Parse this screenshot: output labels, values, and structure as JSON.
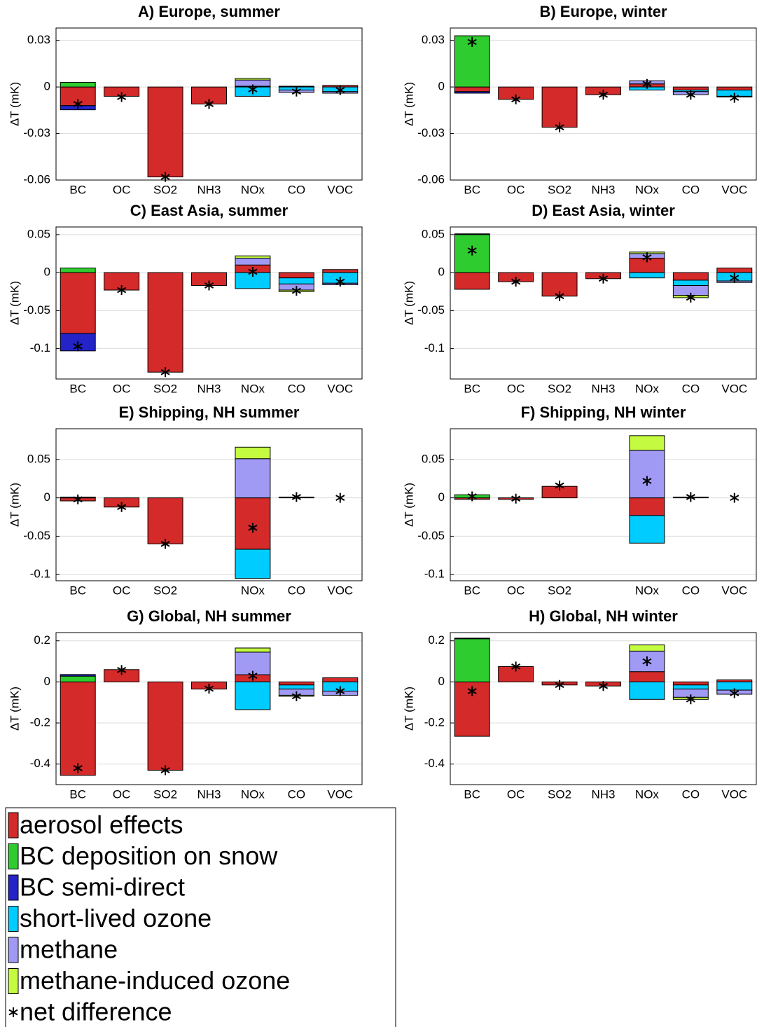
{
  "legend": {
    "entries": [
      {
        "name": "aerosol effects",
        "color": "#d42a2a"
      },
      {
        "name": "BC deposition on snow",
        "color": "#2fcc2f"
      },
      {
        "name": "BC semi-direct",
        "color": "#2323c8"
      },
      {
        "name": "short-lived ozone",
        "color": "#00ccff"
      },
      {
        "name": "methane",
        "color": "#a09af5"
      },
      {
        "name": "methane-induced ozone",
        "color": "#c4fb40"
      }
    ],
    "net_label": "net difference"
  },
  "chart_data": [
    {
      "type": "bar",
      "title": "A) Europe, summer",
      "ylabel": "ΔT (mK)",
      "grid": true,
      "categories": [
        "BC",
        "OC",
        "SO2",
        "NH3",
        "NOx",
        "CO",
        "VOC"
      ],
      "ylim": [
        -0.06,
        0.038
      ],
      "yticks": [
        -0.06,
        -0.03,
        0,
        0.03
      ],
      "series": [
        {
          "values": [
            -0.012,
            -0.006,
            -0.058,
            -0.011,
            0.0005,
            0.0005,
            0.001
          ]
        },
        {
          "values": [
            0.003,
            0,
            0,
            0,
            0,
            0,
            0
          ]
        },
        {
          "values": [
            -0.0027,
            0,
            0,
            0,
            0,
            0,
            0
          ]
        },
        {
          "values": [
            0,
            0,
            0,
            0,
            -0.006,
            -0.002,
            -0.003
          ]
        },
        {
          "values": [
            0,
            0,
            0,
            0,
            0.004,
            -0.0015,
            -0.001
          ]
        },
        {
          "values": [
            0,
            0,
            0,
            0,
            0.001,
            0,
            0
          ]
        }
      ],
      "net": [
        -0.011,
        -0.0065,
        -0.058,
        -0.011,
        -0.0015,
        -0.003,
        -0.002
      ]
    },
    {
      "type": "bar",
      "title": "B) Europe, winter",
      "ylabel": "ΔT (mK)",
      "grid": true,
      "categories": [
        "BC",
        "OC",
        "SO2",
        "NH3",
        "NOx",
        "CO",
        "VOC"
      ],
      "ylim": [
        -0.06,
        0.038
      ],
      "yticks": [
        -0.06,
        -0.03,
        0,
        0.03
      ],
      "series": [
        {
          "values": [
            -0.003,
            -0.008,
            -0.026,
            -0.005,
            0.002,
            -0.002,
            -0.002
          ]
        },
        {
          "values": [
            0.033,
            0,
            0,
            0,
            0,
            0,
            0
          ]
        },
        {
          "values": [
            -0.001,
            0,
            0,
            0,
            0,
            0,
            0
          ]
        },
        {
          "values": [
            0,
            0,
            0,
            0,
            -0.002,
            -0.001,
            -0.004
          ]
        },
        {
          "values": [
            0,
            0,
            0,
            0,
            0.002,
            -0.002,
            -0.0005
          ]
        },
        {
          "values": [
            0,
            0,
            0,
            0,
            0,
            0,
            0
          ]
        }
      ],
      "net": [
        0.029,
        -0.008,
        -0.026,
        -0.005,
        0.002,
        -0.005,
        -0.007
      ]
    },
    {
      "type": "bar",
      "title": "C) East Asia, summer",
      "ylabel": "ΔT (mK)",
      "grid": true,
      "categories": [
        "BC",
        "OC",
        "SO2",
        "NH3",
        "NOx",
        "CO",
        "VOC"
      ],
      "ylim": [
        -0.14,
        0.06
      ],
      "yticks": [
        -0.1,
        -0.05,
        0,
        0.05
      ],
      "series": [
        {
          "values": [
            -0.08,
            -0.023,
            -0.131,
            -0.017,
            0.01,
            -0.007,
            0.004
          ]
        },
        {
          "values": [
            0.006,
            0,
            0,
            0,
            0,
            0,
            0
          ]
        },
        {
          "values": [
            -0.023,
            0,
            0,
            0,
            0,
            0,
            0
          ]
        },
        {
          "values": [
            0,
            0,
            0,
            0,
            -0.021,
            -0.008,
            -0.014
          ]
        },
        {
          "values": [
            0,
            0,
            0,
            0,
            0.009,
            -0.008,
            -0.002
          ]
        },
        {
          "values": [
            0,
            0,
            0,
            0,
            0.003,
            -0.002,
            0
          ]
        }
      ],
      "net": [
        -0.097,
        -0.023,
        -0.131,
        -0.017,
        0.001,
        -0.024,
        -0.012
      ]
    },
    {
      "type": "bar",
      "title": "D) East Asia, winter",
      "ylabel": "ΔT (mK)",
      "grid": true,
      "categories": [
        "BC",
        "OC",
        "SO2",
        "NH3",
        "NOx",
        "CO",
        "VOC"
      ],
      "ylim": [
        -0.14,
        0.06
      ],
      "yticks": [
        -0.1,
        -0.05,
        0,
        0.05
      ],
      "series": [
        {
          "values": [
            -0.022,
            -0.012,
            -0.031,
            -0.008,
            0.019,
            -0.01,
            0.006
          ]
        },
        {
          "values": [
            0.05,
            0,
            0,
            0,
            0,
            0,
            0
          ]
        },
        {
          "values": [
            0.001,
            0,
            0,
            0,
            0,
            0,
            0
          ]
        },
        {
          "values": [
            0,
            0,
            0,
            0,
            -0.007,
            -0.007,
            -0.011
          ]
        },
        {
          "values": [
            0,
            0,
            0,
            0,
            0.006,
            -0.013,
            -0.002
          ]
        },
        {
          "values": [
            0,
            0,
            0,
            0,
            0.002,
            -0.003,
            0
          ]
        }
      ],
      "net": [
        0.029,
        -0.012,
        -0.031,
        -0.008,
        0.02,
        -0.033,
        -0.007
      ]
    },
    {
      "type": "bar",
      "title": "E) Shipping, NH summer",
      "ylabel": "ΔT (mK)",
      "grid": true,
      "categories": [
        "BC",
        "OC",
        "SO2",
        null,
        "NOx",
        "CO",
        "VOC"
      ],
      "ylim": [
        -0.108,
        0.09
      ],
      "yticks": [
        -0.1,
        -0.05,
        0,
        0.05
      ],
      "series": [
        {
          "values": [
            -0.004,
            -0.012,
            -0.06,
            0,
            -0.067,
            0,
            0
          ]
        },
        {
          "values": [
            0.001,
            0,
            0,
            0,
            0,
            0,
            0
          ]
        },
        {
          "values": [
            0,
            0,
            0,
            0,
            0,
            0,
            0
          ]
        },
        {
          "values": [
            0,
            0,
            0,
            0,
            -0.038,
            0,
            0
          ]
        },
        {
          "values": [
            0,
            0,
            0,
            0,
            0.051,
            0.001,
            0
          ]
        },
        {
          "values": [
            0,
            0,
            0,
            0,
            0.015,
            0,
            0
          ]
        }
      ],
      "net": [
        -0.002,
        -0.012,
        -0.06,
        null,
        -0.039,
        0.001,
        0
      ]
    },
    {
      "type": "bar",
      "title": "F) Shipping, NH winter",
      "ylabel": "ΔT (mK)",
      "grid": true,
      "categories": [
        "BC",
        "OC",
        "SO2",
        null,
        "NOx",
        "CO",
        "VOC"
      ],
      "ylim": [
        -0.108,
        0.09
      ],
      "yticks": [
        -0.1,
        -0.05,
        0,
        0.05
      ],
      "series": [
        {
          "values": [
            -0.002,
            -0.002,
            0.015,
            0,
            -0.023,
            0,
            0
          ]
        },
        {
          "values": [
            0.004,
            0,
            0,
            0,
            0,
            0,
            0
          ]
        },
        {
          "values": [
            0,
            0,
            0,
            0,
            0,
            0,
            0
          ]
        },
        {
          "values": [
            0,
            0,
            0,
            0,
            -0.036,
            0,
            0
          ]
        },
        {
          "values": [
            0,
            0,
            0,
            0,
            0.062,
            0.001,
            0
          ]
        },
        {
          "values": [
            0,
            0,
            0,
            0,
            0.019,
            0,
            0
          ]
        }
      ],
      "net": [
        0.002,
        -0.001,
        0.016,
        null,
        0.022,
        0.001,
        0
      ]
    },
    {
      "type": "bar",
      "title": "G) Global, NH summer",
      "ylabel": "ΔT (mK)",
      "grid": true,
      "categories": [
        "BC",
        "OC",
        "SO2",
        "NH3",
        "NOx",
        "CO",
        "VOC"
      ],
      "ylim": [
        -0.5,
        0.24
      ],
      "yticks": [
        -0.4,
        -0.2,
        0,
        0.2
      ],
      "series": [
        {
          "values": [
            -0.455,
            0.06,
            -0.43,
            -0.035,
            0.035,
            -0.015,
            0.02
          ]
        },
        {
          "values": [
            0.028,
            0,
            0,
            0,
            0,
            0,
            0
          ]
        },
        {
          "values": [
            0.008,
            0,
            0,
            0,
            0,
            0,
            0
          ]
        },
        {
          "values": [
            0,
            0,
            0,
            0,
            -0.135,
            -0.02,
            -0.045
          ]
        },
        {
          "values": [
            0,
            0,
            0,
            0,
            0.11,
            -0.03,
            -0.02
          ]
        },
        {
          "values": [
            0,
            0,
            0,
            0,
            0.02,
            -0.005,
            0
          ]
        }
      ],
      "net": [
        -0.42,
        0.058,
        -0.43,
        -0.033,
        0.03,
        -0.07,
        -0.045
      ]
    },
    {
      "type": "bar",
      "title": "H) Global, NH winter",
      "ylabel": "ΔT (mK)",
      "grid": true,
      "categories": [
        "BC",
        "OC",
        "SO2",
        "NH3",
        "NOx",
        "CO",
        "VOC"
      ],
      "ylim": [
        -0.5,
        0.24
      ],
      "yticks": [
        -0.4,
        -0.2,
        0,
        0.2
      ],
      "series": [
        {
          "values": [
            -0.265,
            0.075,
            -0.015,
            -0.02,
            0.05,
            -0.015,
            0.01
          ]
        },
        {
          "values": [
            0.21,
            0,
            0,
            0,
            0,
            0,
            0
          ]
        },
        {
          "values": [
            0.003,
            0,
            0,
            0,
            0,
            0,
            0
          ]
        },
        {
          "values": [
            0,
            0,
            0,
            0,
            -0.085,
            -0.02,
            -0.04
          ]
        },
        {
          "values": [
            0,
            0,
            0,
            0,
            0.1,
            -0.04,
            -0.02
          ]
        },
        {
          "values": [
            0,
            0,
            0,
            0,
            0.03,
            -0.01,
            0
          ]
        }
      ],
      "net": [
        -0.045,
        0.075,
        -0.015,
        -0.02,
        0.1,
        -0.085,
        -0.055
      ]
    }
  ]
}
